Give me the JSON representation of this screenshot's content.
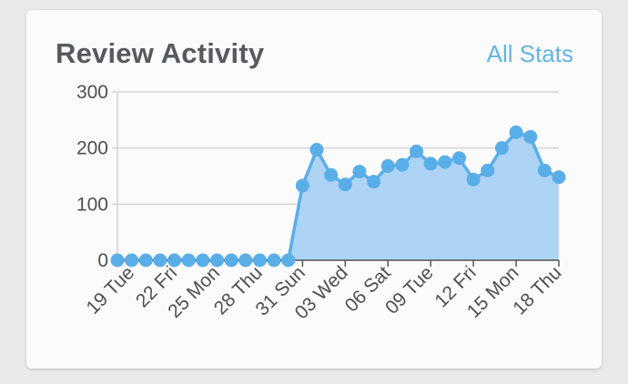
{
  "card": {
    "title": "Review Activity",
    "link_label": "All Stats"
  },
  "colors": {
    "accent": "#62b3e3",
    "line": "#5aaee8",
    "fill": "#aed4f5",
    "grid": "#d4d4d4",
    "text": "#56595e"
  },
  "chart_data": {
    "type": "area",
    "title": "Review Activity",
    "xlabel": "",
    "ylabel": "",
    "ylim": [
      0,
      300
    ],
    "yticks": [
      0,
      100,
      200,
      300
    ],
    "grid": true,
    "legend": "none",
    "x_tick_labels": [
      "19 Tue",
      "22 Fri",
      "25 Mon",
      "28 Thu",
      "31 Sun",
      "03 Wed",
      "06 Sat",
      "09 Tue",
      "12 Fri",
      "15 Mon",
      "18 Thu"
    ],
    "x_tick_indices": [
      1,
      4,
      7,
      10,
      13,
      16,
      19,
      22,
      25,
      28,
      31
    ],
    "series": [
      {
        "values": [
          0,
          0,
          0,
          0,
          0,
          0,
          0,
          0,
          0,
          0,
          0,
          0,
          0,
          133,
          197,
          152,
          135,
          158,
          140,
          168,
          170,
          194,
          172,
          175,
          182,
          144,
          160,
          200,
          228,
          220,
          160,
          148
        ]
      }
    ]
  }
}
